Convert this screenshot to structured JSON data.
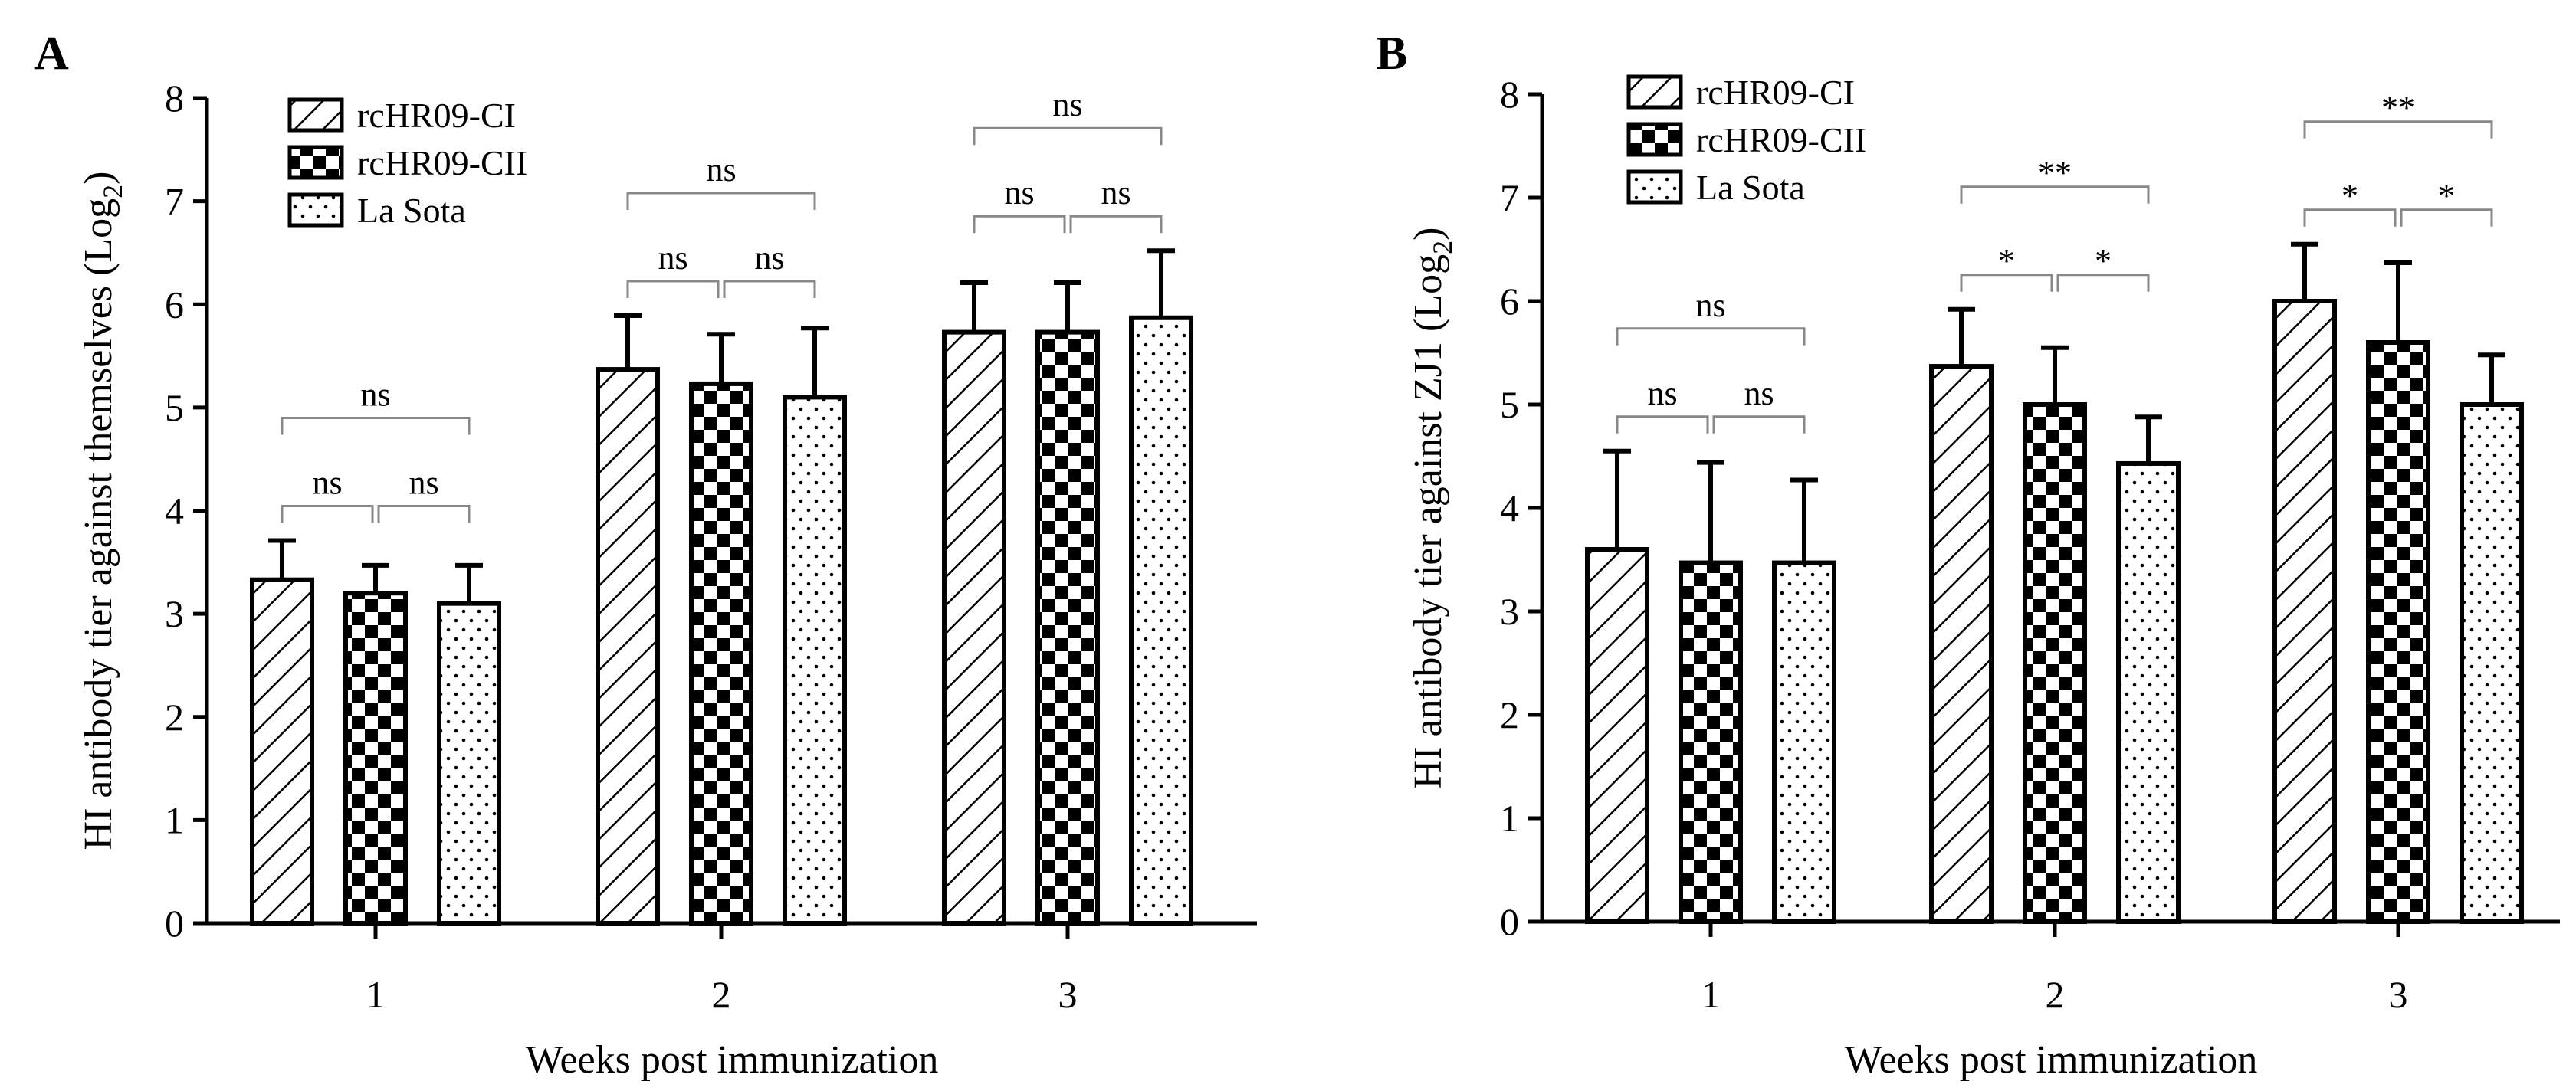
{
  "figure": {
    "panels": [
      "A",
      "B"
    ]
  },
  "chart_data": [
    {
      "panel": "A",
      "type": "bar",
      "ylabel": "HI antibody tier against themselves (Log2)",
      "ylabel_main": "HI antibody tier against themselves (Log",
      "ylabel_sub": "2",
      "ylabel_end": ")",
      "xlabel": "Weeks post immunization",
      "ylim": [
        0,
        8
      ],
      "yticks": [
        "0",
        "1",
        "2",
        "3",
        "4",
        "5",
        "6",
        "7",
        "8"
      ],
      "categories": [
        "1",
        "2",
        "3"
      ],
      "legend_position": "top-left",
      "series": [
        {
          "name": "rcHR09-CI",
          "pattern": "hatch",
          "values": [
            3.33,
            5.37,
            5.73
          ],
          "errors": [
            0.38,
            0.52,
            0.48
          ]
        },
        {
          "name": "rcHR09-CII",
          "pattern": "checker",
          "values": [
            3.2,
            5.23,
            5.73
          ],
          "errors": [
            0.27,
            0.48,
            0.48
          ]
        },
        {
          "name": "La Sota",
          "pattern": "dots",
          "values": [
            3.1,
            5.1,
            5.87
          ],
          "errors": [
            0.37,
            0.67,
            0.65
          ]
        }
      ],
      "significance": [
        {
          "week": "1",
          "pairs": [
            {
              "from": 0,
              "to": 1,
              "label": "ns",
              "level": 1
            },
            {
              "from": 1,
              "to": 2,
              "label": "ns",
              "level": 1
            },
            {
              "from": 0,
              "to": 2,
              "label": "ns",
              "level": 2
            }
          ]
        },
        {
          "week": "2",
          "pairs": [
            {
              "from": 0,
              "to": 1,
              "label": "ns",
              "level": 1
            },
            {
              "from": 1,
              "to": 2,
              "label": "ns",
              "level": 1
            },
            {
              "from": 0,
              "to": 2,
              "label": "ns",
              "level": 2
            }
          ]
        },
        {
          "week": "3",
          "pairs": [
            {
              "from": 0,
              "to": 1,
              "label": "ns",
              "level": 1
            },
            {
              "from": 1,
              "to": 2,
              "label": "ns",
              "level": 1
            },
            {
              "from": 0,
              "to": 2,
              "label": "ns",
              "level": 2
            }
          ]
        }
      ]
    },
    {
      "panel": "B",
      "type": "bar",
      "ylabel": "HI antibody tier against ZJ1 (Log2)",
      "ylabel_main": "HI antibody tier against ZJ1 (Log",
      "ylabel_sub": "2",
      "ylabel_end": ")",
      "xlabel": "Weeks post immunization",
      "ylim": [
        0,
        8
      ],
      "yticks": [
        "0",
        "1",
        "2",
        "3",
        "4",
        "5",
        "6",
        "7",
        "8"
      ],
      "categories": [
        "1",
        "2",
        "3"
      ],
      "legend_position": "top-left",
      "series": [
        {
          "name": "rcHR09-CI",
          "pattern": "hatch",
          "values": [
            3.6,
            5.37,
            6.0
          ],
          "errors": [
            0.95,
            0.55,
            0.55
          ]
        },
        {
          "name": "rcHR09-CII",
          "pattern": "checker",
          "values": [
            3.47,
            5.0,
            5.6
          ],
          "errors": [
            0.97,
            0.55,
            0.77
          ]
        },
        {
          "name": "La Sota",
          "pattern": "dots",
          "values": [
            3.47,
            4.43,
            5.0
          ],
          "errors": [
            0.8,
            0.45,
            0.48
          ]
        }
      ],
      "significance": [
        {
          "week": "1",
          "pairs": [
            {
              "from": 0,
              "to": 1,
              "label": "ns",
              "level": 1
            },
            {
              "from": 1,
              "to": 2,
              "label": "ns",
              "level": 1
            },
            {
              "from": 0,
              "to": 2,
              "label": "ns",
              "level": 2
            }
          ]
        },
        {
          "week": "2",
          "pairs": [
            {
              "from": 0,
              "to": 1,
              "label": "*",
              "level": 1
            },
            {
              "from": 1,
              "to": 2,
              "label": "*",
              "level": 1
            },
            {
              "from": 0,
              "to": 2,
              "label": "**",
              "level": 2
            }
          ]
        },
        {
          "week": "3",
          "pairs": [
            {
              "from": 0,
              "to": 1,
              "label": "*",
              "level": 1
            },
            {
              "from": 1,
              "to": 2,
              "label": "*",
              "level": 1
            },
            {
              "from": 0,
              "to": 2,
              "label": "**",
              "level": 2
            }
          ]
        }
      ]
    }
  ]
}
